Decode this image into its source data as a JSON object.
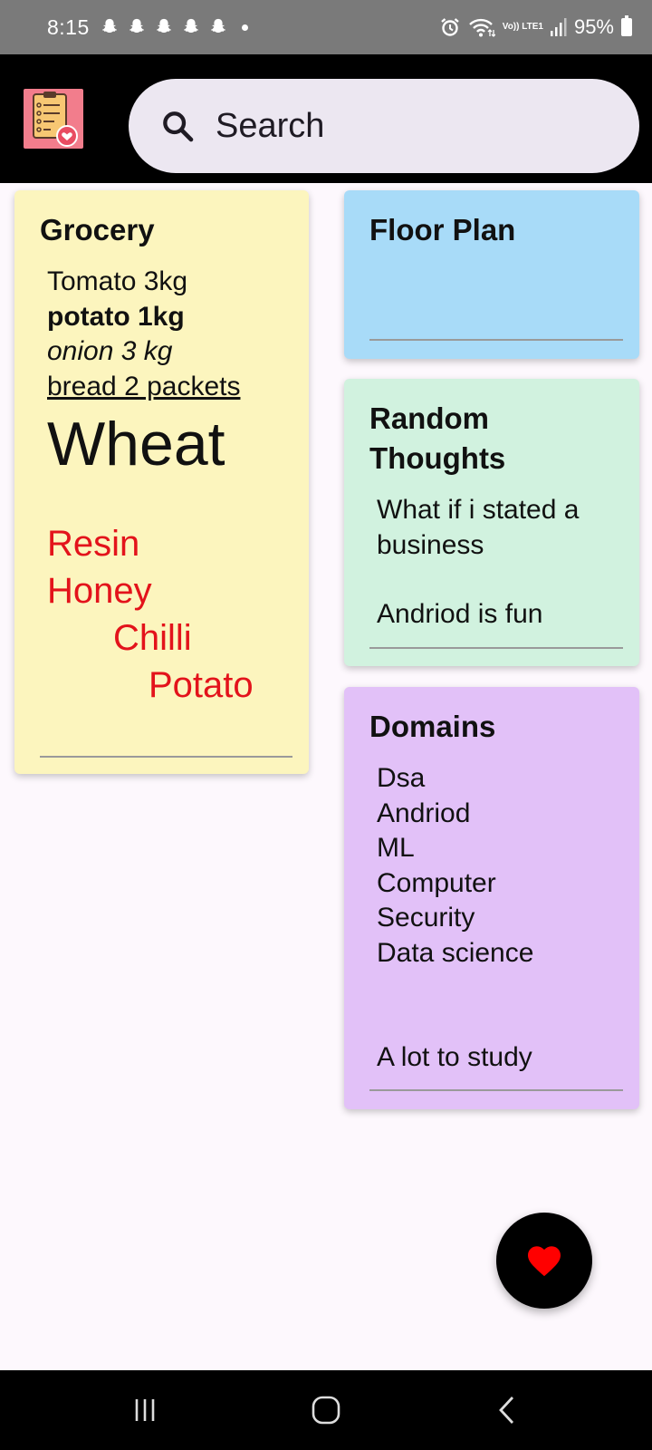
{
  "status_bar": {
    "time": "8:15",
    "notification_icons": [
      "snapchat-icon",
      "snapchat-icon",
      "snapchat-icon",
      "snapchat-icon",
      "snapchat-icon"
    ],
    "network": "Vo)) LTE1",
    "battery": "95%"
  },
  "app_bar": {
    "logo_icon": "notes-list-heart-icon",
    "search_placeholder": "Search",
    "search_value": ""
  },
  "notes": {
    "grocery": {
      "title": "Grocery",
      "lines": [
        "Tomato 3kg",
        "potato 1kg",
        "onion 3 kg",
        "bread 2 packets",
        "Wheat"
      ],
      "red_lines": [
        "Resin",
        "Honey",
        "Chilli",
        "Potato"
      ]
    },
    "floor_plan": {
      "title": "Floor Plan"
    },
    "random_thoughts": {
      "title": "Random Thoughts",
      "lines": [
        "What if i stated a business",
        "Andriod is fun"
      ]
    },
    "domains": {
      "title": "Domains",
      "lines": [
        "Dsa",
        "Andriod",
        "ML",
        "Computer",
        "Security",
        "Data science",
        "A lot to study"
      ]
    }
  },
  "colors": {
    "grocery_bg": "#fcf5be",
    "floor_plan_bg": "#a8dbf8",
    "random_thoughts_bg": "#d1f2df",
    "domains_bg": "#e2c1f8",
    "red_text": "#e3131b",
    "fab_icon": "#ff0000"
  },
  "fab": {
    "icon": "heart-icon"
  },
  "nav_bar": {
    "buttons": [
      "recent-apps-icon",
      "home-icon",
      "back-icon"
    ]
  }
}
